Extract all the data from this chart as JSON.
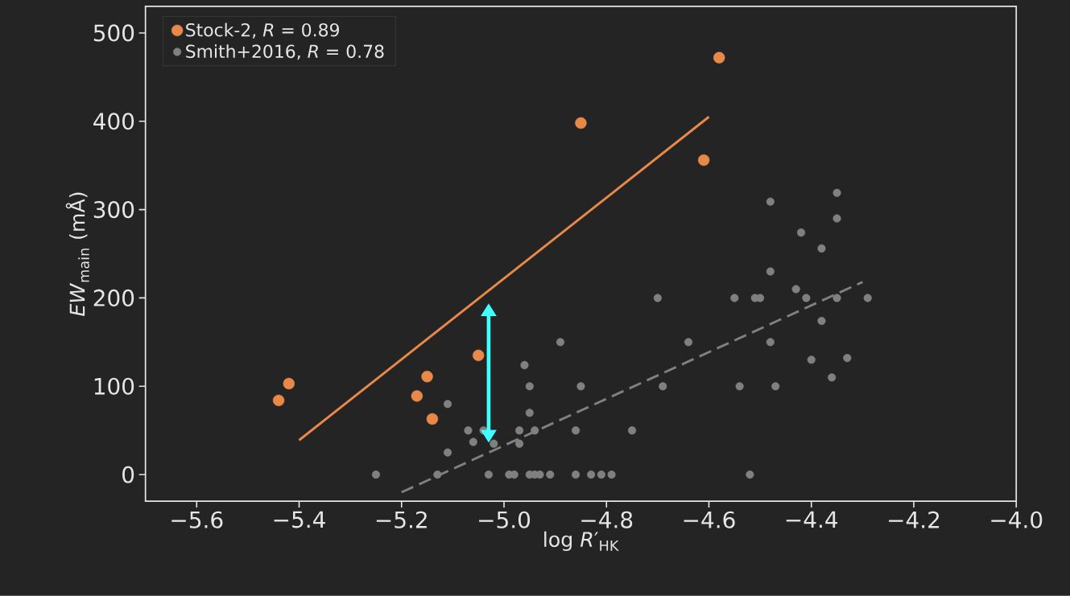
{
  "chart_data": {
    "type": "scatter",
    "xlabel": "log *R*′$_{HK}$",
    "ylabel": "*EW*$_{main}$ (mÅ)",
    "xlim": [
      -5.7,
      -4.0
    ],
    "ylim": [
      -30,
      530
    ],
    "xticks": [
      {
        "value": -5.6,
        "label": "−5.6"
      },
      {
        "value": -5.4,
        "label": "−5.4"
      },
      {
        "value": -5.2,
        "label": "−5.2"
      },
      {
        "value": -5.0,
        "label": "−5.0"
      },
      {
        "value": -4.8,
        "label": "−4.8"
      },
      {
        "value": -4.6,
        "label": "−4.6"
      },
      {
        "value": -4.4,
        "label": "−4.4"
      },
      {
        "value": -4.2,
        "label": "−4.2"
      },
      {
        "value": -4.0,
        "label": "−4.0"
      }
    ],
    "yticks": [
      0,
      100,
      200,
      300,
      400,
      500
    ],
    "legend": "top left",
    "grid": false,
    "series": [
      {
        "name": "Stock-2, *R* = 0.89",
        "marker": "circle",
        "color": "#e8894a",
        "x": [
          -5.44,
          -5.42,
          -5.15,
          -5.17,
          -5.14,
          -5.05,
          -4.85,
          -4.61,
          -4.58
        ],
        "values": [
          84,
          103,
          111,
          89,
          63,
          135,
          398,
          356,
          472
        ]
      },
      {
        "name": "Smith+2016, *R* = 0.78",
        "marker": "circle",
        "color": "#808080",
        "x": [
          -5.25,
          -5.13,
          -5.11,
          -5.11,
          -5.07,
          -5.06,
          -5.04,
          -5.02,
          -5.03,
          -4.97,
          -4.97,
          -4.94,
          -4.96,
          -4.95,
          -4.95,
          -4.89,
          -4.85,
          -4.86,
          -4.75,
          -4.7,
          -4.69,
          -4.64,
          -4.99,
          -4.98,
          -4.95,
          -4.94,
          -4.93,
          -4.91,
          -4.86,
          -4.83,
          -4.81,
          -4.79,
          -4.35,
          -4.48,
          -4.35,
          -4.42,
          -4.38,
          -4.48,
          -4.43,
          -4.55,
          -4.51,
          -4.5,
          -4.41,
          -4.35,
          -4.29,
          -4.38,
          -4.48,
          -4.4,
          -4.33,
          -4.36,
          -4.54,
          -4.47,
          -4.52
        ],
        "values": [
          0,
          0,
          80,
          25,
          50,
          37,
          50,
          35,
          0,
          50,
          35,
          50,
          124,
          100,
          70,
          150,
          100,
          50,
          50,
          200,
          100,
          150,
          0,
          0,
          0,
          0,
          0,
          0,
          0,
          0,
          0,
          0,
          319,
          309,
          290,
          274,
          256,
          230,
          210,
          200,
          200,
          200,
          200,
          200,
          200,
          174,
          150,
          130,
          132,
          110,
          100,
          100,
          0
        ]
      },
      {
        "type": "line",
        "marker": "none",
        "color": "#e8894a",
        "x": [
          -5.4,
          -4.6
        ],
        "values": [
          39,
          405
        ]
      },
      {
        "type": "line",
        "marker": "none",
        "color": "#808080",
        "line_style": "dashed",
        "x": [
          -5.2,
          -4.3
        ],
        "values": [
          -20,
          218
        ]
      }
    ]
  }
}
